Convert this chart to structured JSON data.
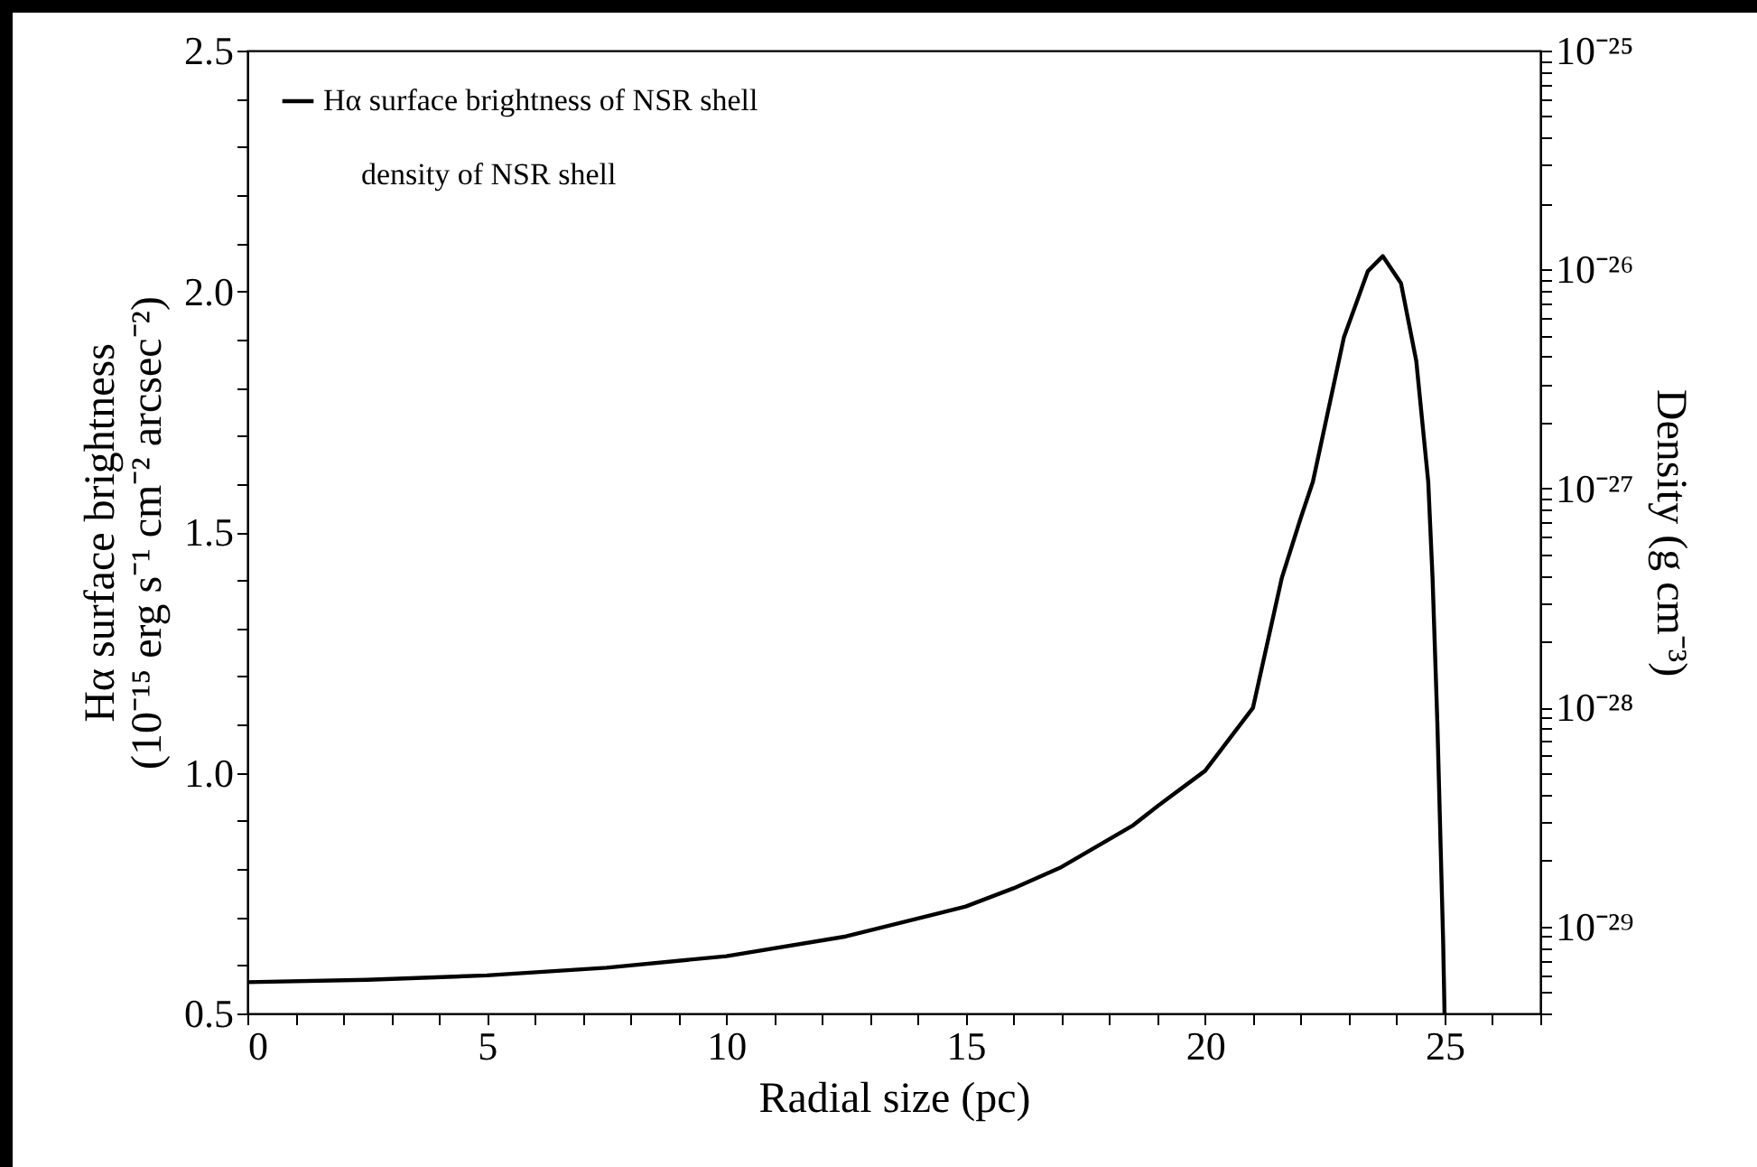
{
  "chart_data": {
    "type": "line",
    "xlabel": "Radial size (pc)",
    "ylabel": "Hα surface brightness\n(10⁻¹⁵ erg s⁻¹ cm⁻² arcsec⁻²)",
    "y2label": "Density (g cm⁻³)",
    "annotations": [
      "density of NSR shell"
    ],
    "x": [
      0,
      2.5,
      5,
      7.5,
      10,
      12.5,
      15,
      16,
      17,
      18.5,
      19,
      20,
      21,
      21.6,
      22,
      22.25,
      22.9,
      23.4,
      23.71,
      24.09,
      24.41,
      24.66,
      24.75,
      24.85,
      24.97,
      25
    ],
    "series": [
      {
        "name": "Hα surface brightness of NSR shell",
        "color": "#000000",
        "values": [
          0.565,
          0.57,
          0.579,
          0.595,
          0.619,
          0.66,
          0.722,
          0.76,
          0.804,
          0.891,
          0.93,
          1.004,
          1.135,
          1.404,
          1.53,
          1.604,
          1.905,
          2.042,
          2.073,
          2.017,
          1.855,
          1.604,
          1.404,
          1.104,
          0.654,
          0.5
        ]
      }
    ],
    "xlim": [
      0,
      27
    ],
    "xticks": [
      0,
      {
        "value": 1,
        "label": null
      },
      {
        "value": 2,
        "label": null
      },
      {
        "value": 3,
        "label": null
      },
      {
        "value": 4,
        "label": null
      },
      5,
      {
        "value": 6,
        "label": null
      },
      {
        "value": 7,
        "label": null
      },
      {
        "value": 8,
        "label": null
      },
      {
        "value": 9,
        "label": null
      },
      10,
      {
        "value": 11,
        "label": null
      },
      {
        "value": 12,
        "label": null
      },
      {
        "value": 13,
        "label": null
      },
      {
        "value": 14,
        "label": null
      },
      15,
      {
        "value": 16,
        "label": null
      },
      {
        "value": 17,
        "label": null
      },
      {
        "value": 18,
        "label": null
      },
      {
        "value": 19,
        "label": null
      },
      20,
      {
        "value": 21,
        "label": null
      },
      {
        "value": 22,
        "label": null
      },
      {
        "value": 23,
        "label": null
      },
      {
        "value": 24,
        "label": null
      },
      25,
      {
        "value": 26,
        "label": null
      },
      {
        "value": 27,
        "label": null
      }
    ],
    "ylim": [
      0.5,
      2.5
    ],
    "yticks": [
      {
        "value": 0.5,
        "label": "0.5"
      },
      {
        "value": 0.6,
        "label": null
      },
      {
        "value": 0.7,
        "label": null
      },
      {
        "value": 0.8,
        "label": null
      },
      {
        "value": 0.9,
        "label": null
      },
      {
        "value": 1,
        "label": "1.0"
      },
      {
        "value": 1.1,
        "label": null
      },
      {
        "value": 1.2,
        "label": null
      },
      {
        "value": 1.3,
        "label": null
      },
      {
        "value": 1.4,
        "label": null
      },
      {
        "value": 1.5,
        "label": "1.5"
      },
      {
        "value": 1.6,
        "label": null
      },
      {
        "value": 1.7,
        "label": null
      },
      {
        "value": 1.8,
        "label": null
      },
      {
        "value": 1.9,
        "label": null
      },
      {
        "value": 2,
        "label": "2.0"
      },
      {
        "value": 2.1,
        "label": null
      },
      {
        "value": 2.2,
        "label": null
      },
      {
        "value": 2.3,
        "label": null
      },
      {
        "value": 2.4,
        "label": null
      },
      {
        "value": 2.5,
        "label": "2.5"
      }
    ],
    "y2lim": [
      4e-30,
      1e-25
    ],
    "y2ticks": [
      {
        "value": 4e-30,
        "label": null
      },
      {
        "value": 5e-30,
        "label": null
      },
      {
        "value": 6e-30,
        "label": null
      },
      {
        "value": 7e-30,
        "label": null
      },
      {
        "value": 8e-30,
        "label": null
      },
      {
        "value": 9e-30,
        "label": null
      },
      {
        "value": 1e-29,
        "label": "10⁻²⁹"
      },
      {
        "value": 2e-29,
        "label": null
      },
      {
        "value": 3e-29,
        "label": null
      },
      {
        "value": 4e-29,
        "label": null
      },
      {
        "value": 5e-29,
        "label": null
      },
      {
        "value": 6e-29,
        "label": null
      },
      {
        "value": 7e-29,
        "label": null
      },
      {
        "value": 8e-29,
        "label": null
      },
      {
        "value": 9e-29,
        "label": null
      },
      {
        "value": 1e-28,
        "label": "10⁻²⁸"
      },
      {
        "value": 2e-28,
        "label": null
      },
      {
        "value": 3e-28,
        "label": null
      },
      {
        "value": 4e-28,
        "label": null
      },
      {
        "value": 5e-28,
        "label": null
      },
      {
        "value": 6e-28,
        "label": null
      },
      {
        "value": 7e-28,
        "label": null
      },
      {
        "value": 8e-28,
        "label": null
      },
      {
        "value": 9e-28,
        "label": null
      },
      {
        "value": 1e-27,
        "label": "10⁻²⁷"
      },
      {
        "value": 2e-27,
        "label": null
      },
      {
        "value": 3e-27,
        "label": null
      },
      {
        "value": 4e-27,
        "label": null
      },
      {
        "value": 5e-27,
        "label": null
      },
      {
        "value": 6e-27,
        "label": null
      },
      {
        "value": 7e-27,
        "label": null
      },
      {
        "value": 8e-27,
        "label": null
      },
      {
        "value": 9e-27,
        "label": null
      },
      {
        "value": 1e-26,
        "label": "10⁻²⁶"
      },
      {
        "value": 2e-26,
        "label": null
      },
      {
        "value": 3e-26,
        "label": null
      },
      {
        "value": 4e-26,
        "label": null
      },
      {
        "value": 5e-26,
        "label": null
      },
      {
        "value": 6e-26,
        "label": null
      },
      {
        "value": 7e-26,
        "label": null
      },
      {
        "value": 8e-26,
        "label": null
      },
      {
        "value": 9e-26,
        "label": null
      },
      {
        "value": 1e-25,
        "label": "10⁻²⁵"
      }
    ],
    "log": "y2",
    "legend": "top left",
    "marker": "none",
    "line_style": "solid"
  }
}
